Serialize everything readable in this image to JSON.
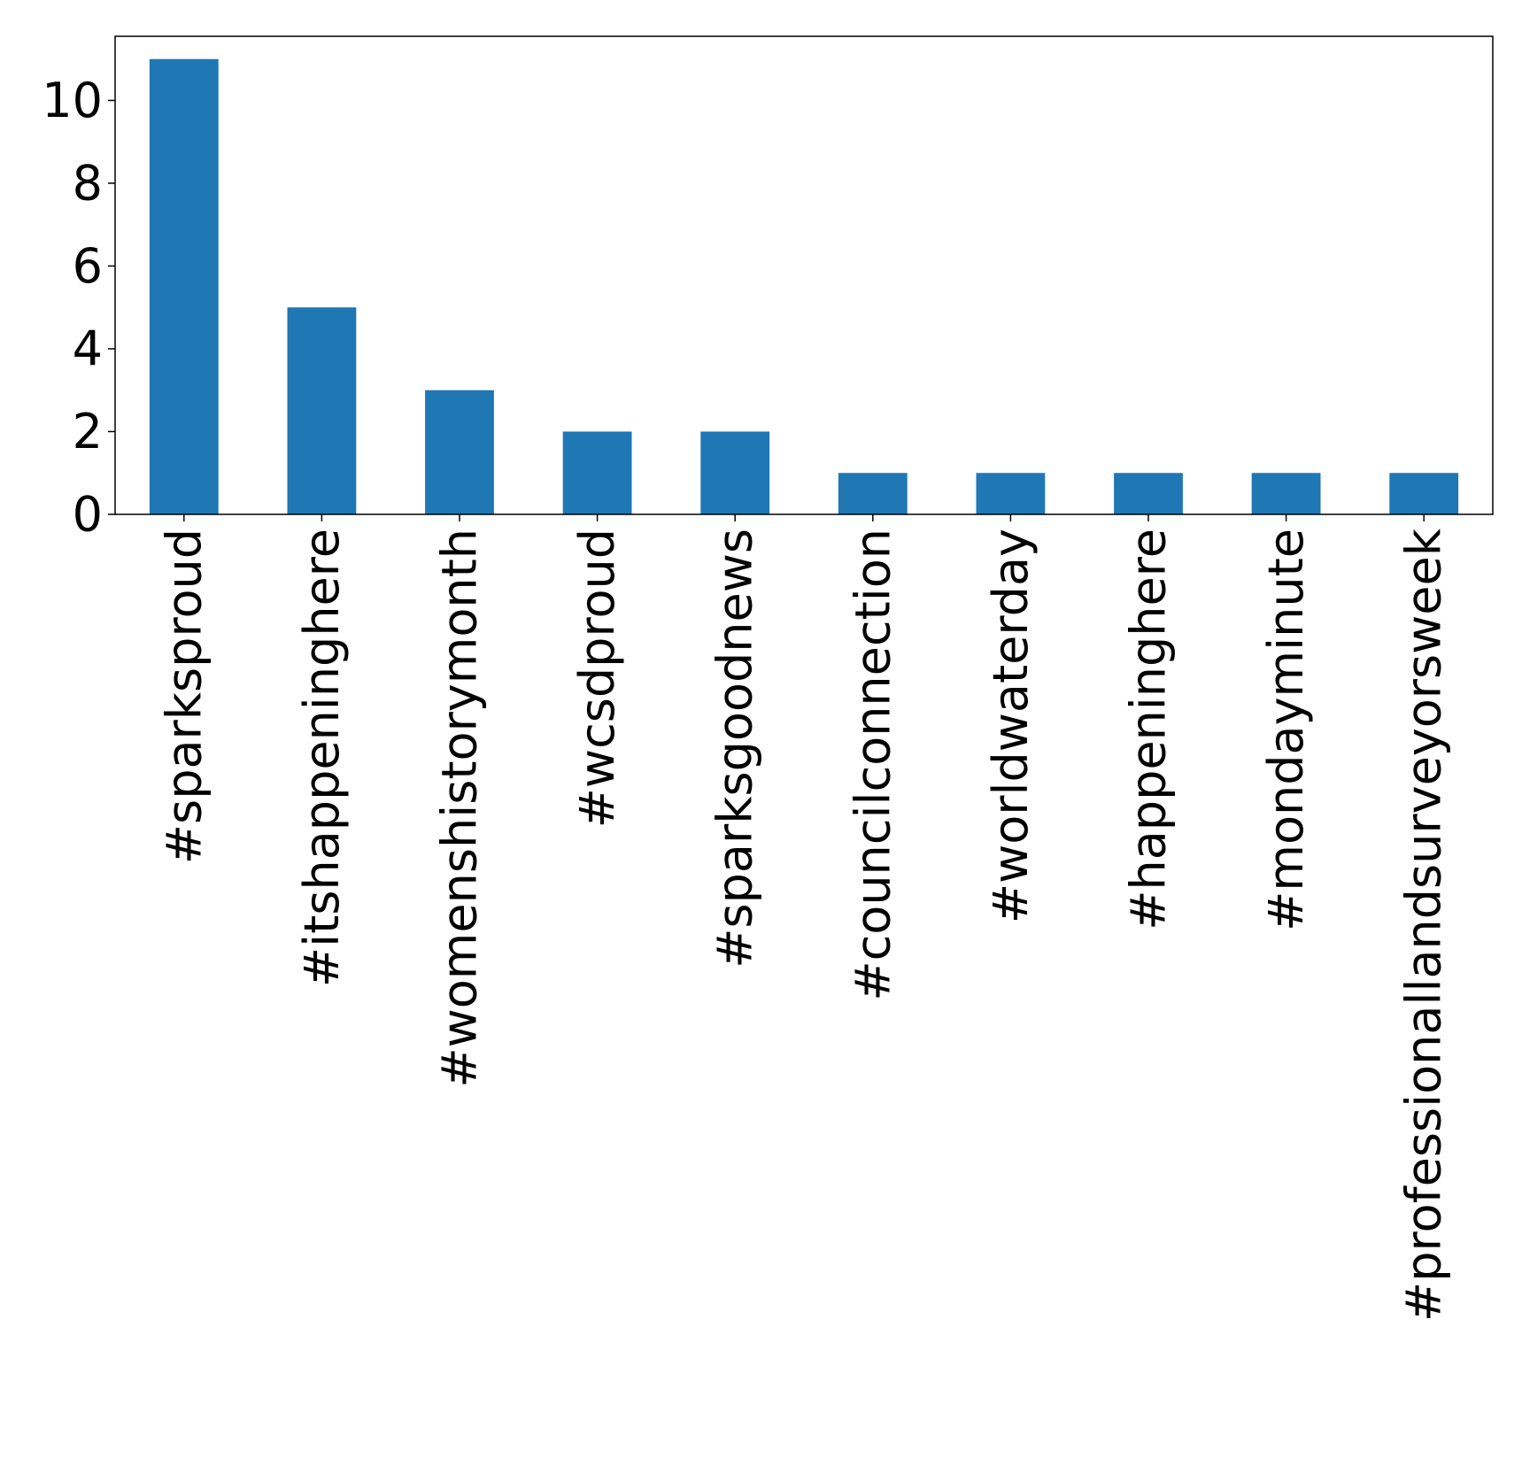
{
  "chart_data": {
    "type": "bar",
    "title": "",
    "xlabel": "",
    "ylabel": "",
    "categories": [
      "#sparksproud",
      "#itshappeninghere",
      "#womenshistorymonth",
      "#wcsdproud",
      "#sparksgoodnews",
      "#councilconnection",
      "#worldwaterday",
      "#happeninghere",
      "#mondayminute",
      "#professionallandsurveyorsweek"
    ],
    "values": [
      11,
      5,
      3,
      2,
      2,
      1,
      1,
      1,
      1,
      1
    ],
    "ylim": [
      0,
      11.55
    ],
    "yticks": [
      0,
      2,
      4,
      6,
      8,
      10
    ],
    "grid": false,
    "legend": "none",
    "bar_color": "#1f77b4"
  }
}
